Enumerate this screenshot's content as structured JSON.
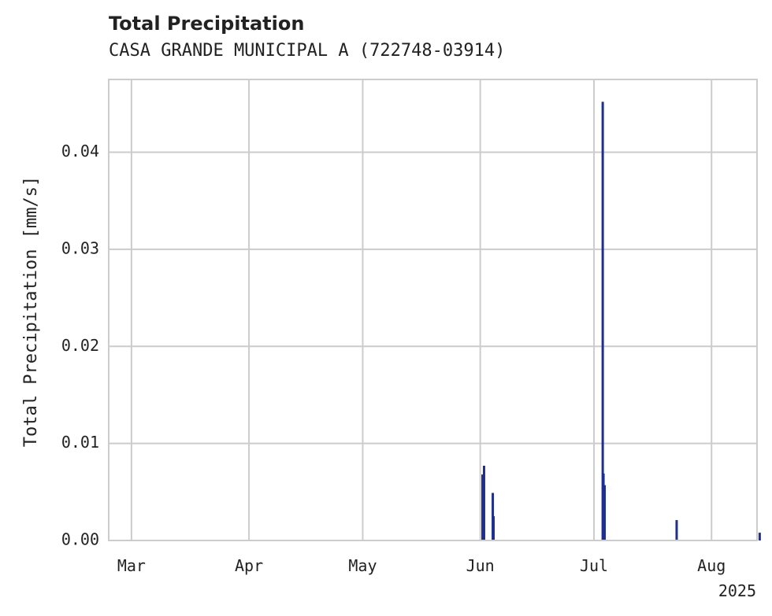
{
  "chart_data": {
    "type": "bar",
    "title": "Total Precipitation",
    "subtitle": "CASA GRANDE MUNICIPAL A (722748-03914)",
    "xlabel": "",
    "ylabel": "Total Precipitation [mm/s]",
    "ylim": [
      0,
      0.0475
    ],
    "yticks": [
      0.0,
      0.01,
      0.02,
      0.03,
      0.04
    ],
    "ytick_labels": [
      "0.00",
      "0.01",
      "0.02",
      "0.03",
      "0.04"
    ],
    "xlim_days": [
      -6,
      165
    ],
    "xticks": [
      {
        "label": "Mar",
        "day": 0
      },
      {
        "label": "Apr",
        "day": 31
      },
      {
        "label": "May",
        "day": 61
      },
      {
        "label": "Jun",
        "day": 92
      },
      {
        "label": "Jul",
        "day": 122
      },
      {
        "label": "Aug",
        "day": 153
      }
    ],
    "x_offset_label": "2025",
    "series_color": "#1f2f8f",
    "grid": true,
    "points": [
      {
        "day": 92.6,
        "value": 0.0068
      },
      {
        "day": 93.0,
        "value": 0.0077
      },
      {
        "day": 95.3,
        "value": 0.0049
      },
      {
        "day": 95.5,
        "value": 0.0025
      },
      {
        "day": 124.3,
        "value": 0.0452
      },
      {
        "day": 124.5,
        "value": 0.0069
      },
      {
        "day": 124.8,
        "value": 0.0057
      },
      {
        "day": 143.8,
        "value": 0.0021
      },
      {
        "day": 165.7,
        "value": 0.0008
      }
    ]
  }
}
